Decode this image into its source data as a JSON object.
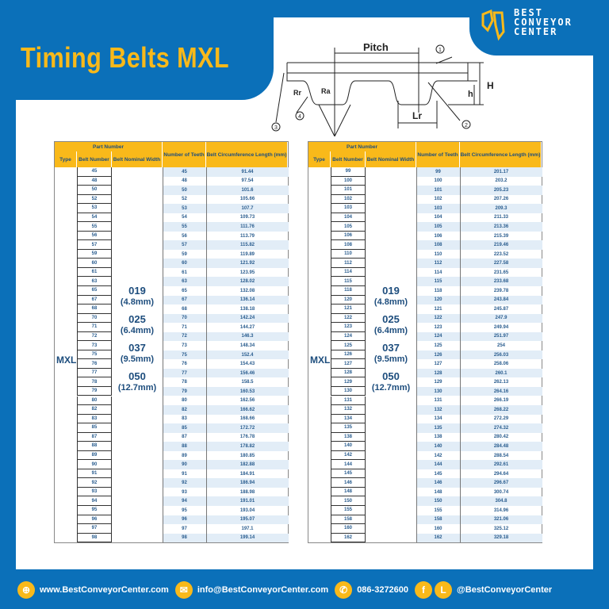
{
  "title": "Timing Belts MXL",
  "logo": {
    "line1": "BEST",
    "line2": "CONVEYOR",
    "line3": "CENTER"
  },
  "diagram": {
    "pitch": "Pitch",
    "H": "H",
    "h": "h",
    "Lr": "Lr",
    "Rr": "Rr",
    "Ra": "Ra",
    "n1": "1",
    "n2": "2",
    "n3": "3",
    "n4": "4"
  },
  "table_headers": {
    "part_number": "Part Number",
    "type": "Type",
    "belt_number": "Belt Number",
    "width": "Belt Nominal Width",
    "teeth": "Number of Teeth",
    "circ": "Belt Circumference Length (mm)"
  },
  "type": "MXL",
  "widths": [
    {
      "code": "019",
      "mm": "(4.8mm)"
    },
    {
      "code": "025",
      "mm": "(6.4mm)"
    },
    {
      "code": "037",
      "mm": "(9.5mm)"
    },
    {
      "code": "050",
      "mm": "(12.7mm)"
    }
  ],
  "tables": [
    {
      "rows": [
        [
          "45",
          "45",
          "91.44"
        ],
        [
          "48",
          "48",
          "97.54"
        ],
        [
          "50",
          "50",
          "101.6"
        ],
        [
          "52",
          "52",
          "105.66"
        ],
        [
          "53",
          "53",
          "107.7"
        ],
        [
          "54",
          "54",
          "109.73"
        ],
        [
          "55",
          "55",
          "111.76"
        ],
        [
          "56",
          "56",
          "113.79"
        ],
        [
          "57",
          "57",
          "115.82"
        ],
        [
          "59",
          "59",
          "119.89"
        ],
        [
          "60",
          "60",
          "121.92"
        ],
        [
          "61",
          "61",
          "123.95"
        ],
        [
          "63",
          "63",
          "128.02"
        ],
        [
          "65",
          "65",
          "132.08"
        ],
        [
          "67",
          "67",
          "136.14"
        ],
        [
          "68",
          "68",
          "138.18"
        ],
        [
          "70",
          "70",
          "142.24"
        ],
        [
          "71",
          "71",
          "144.27"
        ],
        [
          "72",
          "72",
          "146.3"
        ],
        [
          "73",
          "73",
          "148.34"
        ],
        [
          "75",
          "75",
          "152.4"
        ],
        [
          "76",
          "76",
          "154.43"
        ],
        [
          "77",
          "77",
          "156.46"
        ],
        [
          "78",
          "78",
          "158.5"
        ],
        [
          "79",
          "79",
          "160.53"
        ],
        [
          "80",
          "80",
          "162.56"
        ],
        [
          "82",
          "82",
          "166.62"
        ],
        [
          "83",
          "83",
          "168.66"
        ],
        [
          "85",
          "85",
          "172.72"
        ],
        [
          "87",
          "87",
          "176.78"
        ],
        [
          "88",
          "88",
          "178.82"
        ],
        [
          "89",
          "89",
          "180.85"
        ],
        [
          "90",
          "90",
          "182.88"
        ],
        [
          "91",
          "91",
          "184.91"
        ],
        [
          "92",
          "92",
          "186.94"
        ],
        [
          "93",
          "93",
          "188.98"
        ],
        [
          "94",
          "94",
          "191.01"
        ],
        [
          "95",
          "95",
          "193.04"
        ],
        [
          "96",
          "96",
          "195.07"
        ],
        [
          "97",
          "97",
          "197.1"
        ],
        [
          "98",
          "98",
          "199.14"
        ]
      ]
    },
    {
      "rows": [
        [
          "99",
          "99",
          "201.17"
        ],
        [
          "100",
          "100",
          "203.2"
        ],
        [
          "101",
          "101",
          "205.23"
        ],
        [
          "102",
          "102",
          "207.26"
        ],
        [
          "103",
          "103",
          "209.3"
        ],
        [
          "104",
          "104",
          "211.33"
        ],
        [
          "105",
          "105",
          "213.36"
        ],
        [
          "106",
          "106",
          "215.39"
        ],
        [
          "108",
          "108",
          "219.46"
        ],
        [
          "110",
          "110",
          "223.52"
        ],
        [
          "112",
          "112",
          "227.58"
        ],
        [
          "114",
          "114",
          "231.65"
        ],
        [
          "115",
          "115",
          "233.68"
        ],
        [
          "118",
          "118",
          "239.78"
        ],
        [
          "120",
          "120",
          "243.84"
        ],
        [
          "121",
          "121",
          "245.87"
        ],
        [
          "122",
          "122",
          "247.9"
        ],
        [
          "123",
          "123",
          "249.94"
        ],
        [
          "124",
          "124",
          "251.97"
        ],
        [
          "125",
          "125",
          "254"
        ],
        [
          "126",
          "126",
          "256.03"
        ],
        [
          "127",
          "127",
          "258.06"
        ],
        [
          "128",
          "128",
          "260.1"
        ],
        [
          "129",
          "129",
          "262.13"
        ],
        [
          "130",
          "130",
          "264.16"
        ],
        [
          "131",
          "131",
          "266.19"
        ],
        [
          "132",
          "132",
          "268.22"
        ],
        [
          "134",
          "134",
          "272.29"
        ],
        [
          "135",
          "135",
          "274.32"
        ],
        [
          "138",
          "138",
          "280.42"
        ],
        [
          "140",
          "140",
          "284.48"
        ],
        [
          "142",
          "142",
          "288.54"
        ],
        [
          "144",
          "144",
          "292.61"
        ],
        [
          "145",
          "145",
          "294.64"
        ],
        [
          "146",
          "146",
          "296.67"
        ],
        [
          "148",
          "148",
          "300.74"
        ],
        [
          "150",
          "150",
          "304.8"
        ],
        [
          "155",
          "155",
          "314.96"
        ],
        [
          "158",
          "158",
          "321.06"
        ],
        [
          "160",
          "160",
          "325.12"
        ],
        [
          "162",
          "162",
          "329.18"
        ]
      ]
    }
  ],
  "footer": {
    "website": "www.BestConveyorCenter.com",
    "email": "info@BestConveyorCenter.com",
    "phone": "086-3272600",
    "social": "@BestConveyorCenter",
    "line_letter": "L",
    "fb_letter": "f"
  },
  "colors": {
    "brand_blue": "#0b70b9",
    "accent_yellow": "#f9b91a"
  }
}
